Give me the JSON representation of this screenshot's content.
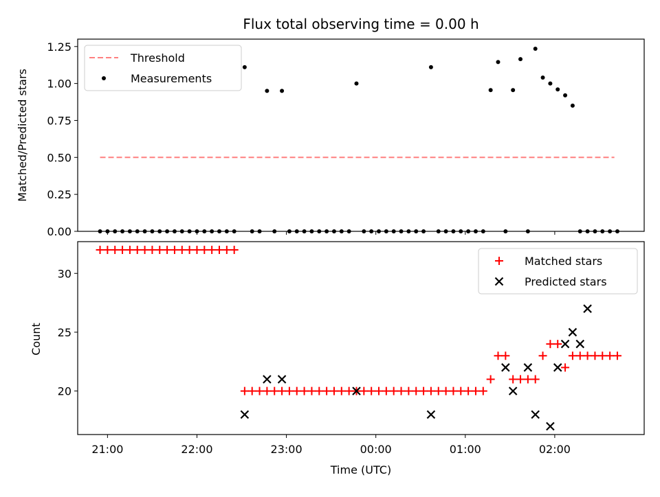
{
  "chart_data": [
    {
      "type": "scatter",
      "title": "Flux total observing time = 0.00 h",
      "ylabel": "Matched/Predicted stars",
      "xlabel": "",
      "xlim": [
        "20:40",
        "27:00"
      ],
      "ylim": [
        0,
        1.3
      ],
      "yticks": [
        "0.00",
        "0.25",
        "0.50",
        "0.75",
        "1.00",
        "1.25"
      ],
      "grid": false,
      "legend_position": "top-left",
      "series": [
        {
          "name": "Threshold",
          "kind": "dashed-line",
          "color": "#ff7f7f",
          "x": [
            "20:55",
            "26:40"
          ],
          "y": [
            0.5,
            0.5
          ]
        },
        {
          "name": "Measurements",
          "kind": "dots",
          "color": "#000000",
          "x": [
            "20:55",
            "21:00",
            "21:05",
            "21:10",
            "21:15",
            "21:20",
            "21:25",
            "21:30",
            "21:35",
            "21:40",
            "21:45",
            "21:50",
            "21:55",
            "22:00",
            "22:05",
            "22:10",
            "22:15",
            "22:20",
            "22:25",
            "22:32",
            "22:37",
            "22:42",
            "22:47",
            "22:52",
            "22:57",
            "23:02",
            "23:07",
            "23:12",
            "23:17",
            "23:22",
            "23:27",
            "23:32",
            "23:37",
            "23:42",
            "23:47",
            "23:52",
            "23:57",
            "24:02",
            "24:07",
            "24:12",
            "24:17",
            "24:22",
            "24:27",
            "24:32",
            "24:37",
            "24:42",
            "24:47",
            "24:52",
            "24:57",
            "25:02",
            "25:07",
            "25:12",
            "25:17",
            "25:22",
            "25:27",
            "25:32",
            "25:37",
            "25:42",
            "25:47",
            "25:52",
            "25:57",
            "26:02",
            "26:07",
            "26:12",
            "26:17",
            "26:22",
            "26:27",
            "26:32",
            "26:37",
            "26:42"
          ],
          "y": [
            0,
            0,
            0,
            0,
            0,
            0,
            0,
            0,
            0,
            0,
            0,
            0,
            0,
            0,
            0,
            0,
            0,
            0,
            0,
            1.11,
            0,
            0,
            0.95,
            0,
            0.95,
            0,
            0,
            0,
            0,
            0,
            0,
            0,
            0,
            0,
            1.0,
            0,
            0,
            0,
            0,
            0,
            0,
            0,
            0,
            0,
            1.11,
            0,
            0,
            0,
            0,
            0,
            0,
            0,
            0.955,
            1.145,
            0,
            0.955,
            1.165,
            0,
            1.235,
            1.04,
            1.0,
            0.96,
            0.92,
            0.85,
            0,
            0,
            0,
            0,
            0,
            0
          ]
        }
      ]
    },
    {
      "type": "scatter",
      "title": "",
      "ylabel": "Count",
      "xlabel": "Time (UTC)",
      "xlim": [
        "20:40",
        "27:00"
      ],
      "ylim": [
        16.3,
        32.7
      ],
      "yticks": [
        "20",
        "25",
        "30"
      ],
      "xticks": [
        "21:00",
        "22:00",
        "23:00",
        "00:00",
        "01:00",
        "02:00"
      ],
      "grid": false,
      "legend_position": "top-right",
      "series": [
        {
          "name": "Matched stars",
          "marker": "plus",
          "color": "#ff0000",
          "x": [
            "20:55",
            "21:00",
            "21:05",
            "21:10",
            "21:15",
            "21:20",
            "21:25",
            "21:30",
            "21:35",
            "21:40",
            "21:45",
            "21:50",
            "21:55",
            "22:00",
            "22:05",
            "22:10",
            "22:15",
            "22:20",
            "22:25",
            "22:32",
            "22:37",
            "22:42",
            "22:47",
            "22:52",
            "22:57",
            "23:02",
            "23:07",
            "23:12",
            "23:17",
            "23:22",
            "23:27",
            "23:32",
            "23:37",
            "23:42",
            "23:47",
            "23:52",
            "23:57",
            "24:02",
            "24:07",
            "24:12",
            "24:17",
            "24:22",
            "24:27",
            "24:32",
            "24:37",
            "24:42",
            "24:47",
            "24:52",
            "24:57",
            "25:02",
            "25:07",
            "25:12",
            "25:17",
            "25:22",
            "25:27",
            "25:32",
            "25:37",
            "25:42",
            "25:47",
            "25:52",
            "25:57",
            "26:02",
            "26:07",
            "26:12",
            "26:17",
            "26:22",
            "26:27",
            "26:32",
            "26:37",
            "26:42"
          ],
          "y": [
            32,
            32,
            32,
            32,
            32,
            32,
            32,
            32,
            32,
            32,
            32,
            32,
            32,
            32,
            32,
            32,
            32,
            32,
            32,
            20,
            20,
            20,
            20,
            20,
            20,
            20,
            20,
            20,
            20,
            20,
            20,
            20,
            20,
            20,
            20,
            20,
            20,
            20,
            20,
            20,
            20,
            20,
            20,
            20,
            20,
            20,
            20,
            20,
            20,
            20,
            20,
            20,
            21,
            23,
            23,
            21,
            21,
            21,
            21,
            23,
            24,
            24,
            22,
            23,
            23,
            23,
            23,
            23,
            23,
            23
          ]
        },
        {
          "name": "Predicted stars",
          "marker": "x",
          "color": "#000000",
          "x": [
            "22:32",
            "22:47",
            "22:57",
            "23:47",
            "24:37",
            "25:27",
            "25:32",
            "25:42",
            "25:47",
            "25:57",
            "26:02",
            "26:07",
            "26:12",
            "26:17",
            "26:22"
          ],
          "y": [
            18,
            21,
            21,
            20,
            18,
            22,
            20,
            22,
            18,
            17,
            22,
            24,
            25,
            24,
            27
          ]
        }
      ]
    }
  ]
}
